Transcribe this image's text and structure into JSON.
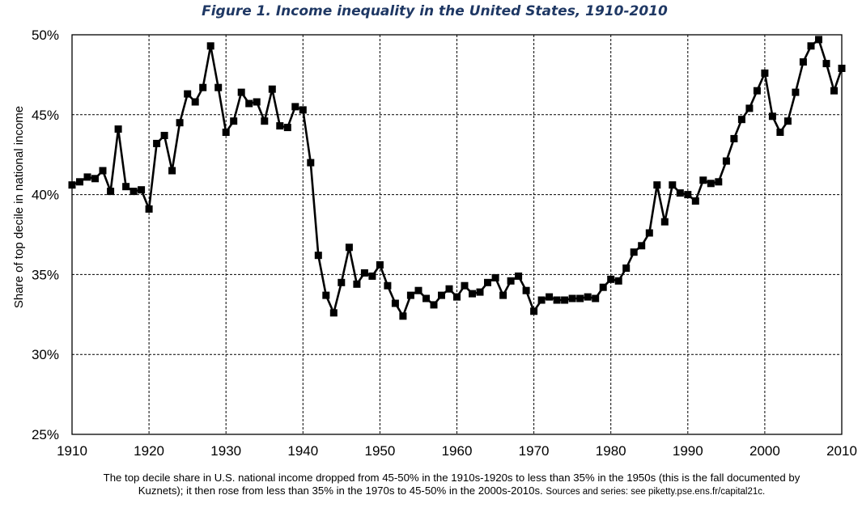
{
  "chart_data": {
    "type": "line",
    "title": "Figure 1. Income inequality in the United States, 1910-2010",
    "xlabel": "",
    "ylabel": "Share of top decile in national income",
    "xlim": [
      1910,
      2010
    ],
    "ylim": [
      0.25,
      0.5
    ],
    "x_ticks": [
      1910,
      1920,
      1930,
      1940,
      1950,
      1960,
      1970,
      1980,
      1990,
      2000,
      2010
    ],
    "x_tick_labels": [
      "1910",
      "1920",
      "1930",
      "1940",
      "1950",
      "1960",
      "1970",
      "1980",
      "1990",
      "2000",
      "2010"
    ],
    "y_ticks": [
      0.25,
      0.3,
      0.35,
      0.4,
      0.45,
      0.5
    ],
    "y_tick_labels": [
      "25%",
      "30%",
      "35%",
      "40%",
      "45%",
      "50%"
    ],
    "grid": true,
    "series": [
      {
        "x": [
          1910,
          1911,
          1912,
          1913,
          1914,
          1915,
          1916,
          1917,
          1918,
          1919,
          1920,
          1921,
          1922,
          1923,
          1924,
          1925,
          1926,
          1927,
          1928,
          1929,
          1930,
          1931,
          1932,
          1933,
          1934,
          1935,
          1936,
          1937,
          1938,
          1939,
          1940,
          1941,
          1942,
          1943,
          1944,
          1945,
          1946,
          1947,
          1948,
          1949,
          1950,
          1951,
          1952,
          1953,
          1954,
          1955,
          1956,
          1957,
          1958,
          1959,
          1960,
          1961,
          1962,
          1963,
          1964,
          1965,
          1966,
          1967,
          1968,
          1969,
          1970,
          1971,
          1972,
          1973,
          1974,
          1975,
          1976,
          1977,
          1978,
          1979,
          1980,
          1981,
          1982,
          1983,
          1984,
          1985,
          1986,
          1987,
          1988,
          1989,
          1990,
          1991,
          1992,
          1993,
          1994,
          1995,
          1996,
          1997,
          1998,
          1999,
          2000,
          2001,
          2002,
          2003,
          2004,
          2005,
          2006,
          2007,
          2008,
          2009,
          2010
        ],
        "y": [
          0.406,
          0.408,
          0.411,
          0.41,
          0.415,
          0.402,
          0.441,
          0.405,
          0.402,
          0.403,
          0.391,
          0.432,
          0.437,
          0.415,
          0.445,
          0.463,
          0.458,
          0.467,
          0.493,
          0.467,
          0.439,
          0.446,
          0.464,
          0.457,
          0.458,
          0.446,
          0.466,
          0.443,
          0.442,
          0.455,
          0.453,
          0.42,
          0.362,
          0.337,
          0.326,
          0.345,
          0.367,
          0.344,
          0.351,
          0.349,
          0.356,
          0.343,
          0.332,
          0.324,
          0.337,
          0.34,
          0.335,
          0.331,
          0.337,
          0.341,
          0.336,
          0.343,
          0.338,
          0.339,
          0.345,
          0.348,
          0.337,
          0.346,
          0.349,
          0.34,
          0.327,
          0.334,
          0.336,
          0.334,
          0.334,
          0.335,
          0.335,
          0.336,
          0.335,
          0.342,
          0.347,
          0.346,
          0.354,
          0.364,
          0.368,
          0.376,
          0.406,
          0.383,
          0.406,
          0.401,
          0.4,
          0.396,
          0.409,
          0.407,
          0.408,
          0.421,
          0.435,
          0.447,
          0.454,
          0.465,
          0.476,
          0.449,
          0.439,
          0.446,
          0.464,
          0.483,
          0.493,
          0.497,
          0.482,
          0.465,
          0.479
        ]
      }
    ]
  },
  "caption": {
    "line1": "The top decile share in U.S. national income dropped from 45-50% in the 1910s-1920s to less than 35% in the 1950s (this is the fall documented by",
    "line2": "Kuznets); it then rose from less than 35% in the 1970s to 45-50% in the 2000s-2010s.",
    "sources": "Sources and series: see piketty.pse.ens.fr/capital21c."
  }
}
